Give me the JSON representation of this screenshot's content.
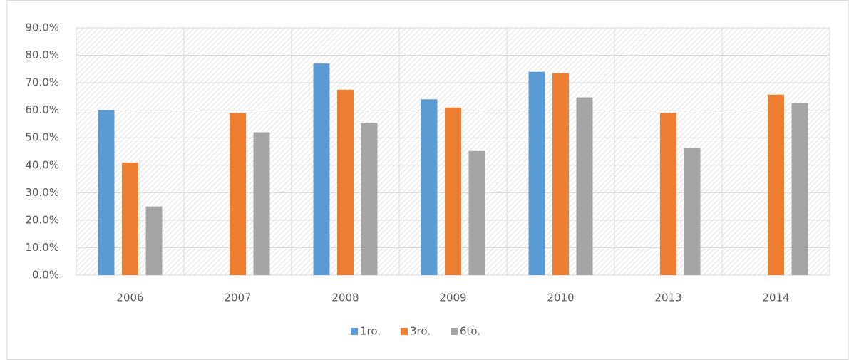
{
  "chart_data": {
    "type": "bar",
    "categories": [
      "2006",
      "2007",
      "2008",
      "2009",
      "2010",
      "2013",
      "2014"
    ],
    "series": [
      {
        "name": "1ro.",
        "color": "#5b9bd5",
        "values": [
          60,
          null,
          77,
          64,
          74,
          null,
          null
        ]
      },
      {
        "name": "3ro.",
        "color": "#ed7d31",
        "values": [
          41,
          59,
          67.5,
          61,
          73.5,
          59,
          65.7
        ]
      },
      {
        "name": "6to.",
        "color": "#a5a5a5",
        "values": [
          25,
          52,
          55.3,
          45.2,
          64.7,
          46.2,
          62.7
        ]
      }
    ],
    "ylim": [
      0,
      90
    ],
    "yticks": [
      {
        "value": 0,
        "label": "0.0%"
      },
      {
        "value": 10,
        "label": "10.0%"
      },
      {
        "value": 20,
        "label": "20.0%"
      },
      {
        "value": 30,
        "label": "30.0%"
      },
      {
        "value": 40,
        "label": "40.0%"
      },
      {
        "value": 50,
        "label": "50.0%"
      },
      {
        "value": 60,
        "label": "60.0%"
      },
      {
        "value": 70,
        "label": "70.0%"
      },
      {
        "value": 80,
        "label": "80.0%"
      },
      {
        "value": 90,
        "label": "90.0%"
      }
    ],
    "grid": true,
    "legend": "bottom"
  }
}
